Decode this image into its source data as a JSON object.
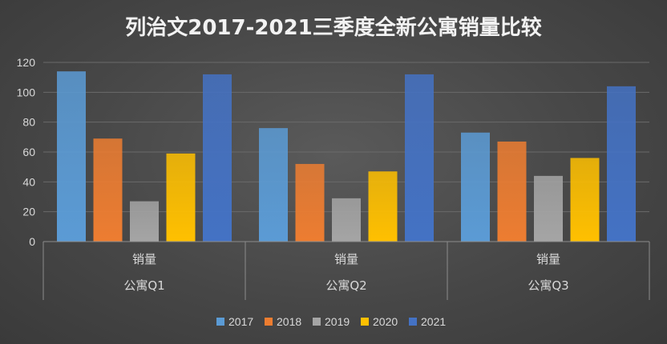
{
  "chart_data": {
    "type": "bar",
    "title": "列治文2017-2021三季度全新公寓销量比较",
    "categories": [
      "公寓Q1",
      "公寓Q2",
      "公寓Q3"
    ],
    "sub_categories": [
      "销量",
      "销量",
      "销量"
    ],
    "series": [
      {
        "name": "2017",
        "values": [
          114,
          76,
          73
        ],
        "color": "#5b9bd5"
      },
      {
        "name": "2018",
        "values": [
          69,
          52,
          67
        ],
        "color": "#ed7d31"
      },
      {
        "name": "2019",
        "values": [
          27,
          29,
          44
        ],
        "color": "#a5a5a5"
      },
      {
        "name": "2020",
        "values": [
          59,
          47,
          56
        ],
        "color": "#ffc000"
      },
      {
        "name": "2021",
        "values": [
          112,
          112,
          104
        ],
        "color": "#4472c4"
      }
    ],
    "ylim": [
      0,
      120
    ],
    "yticks": [
      0,
      20,
      40,
      60,
      80,
      100,
      120
    ],
    "grid": true,
    "legend_position": "bottom"
  }
}
